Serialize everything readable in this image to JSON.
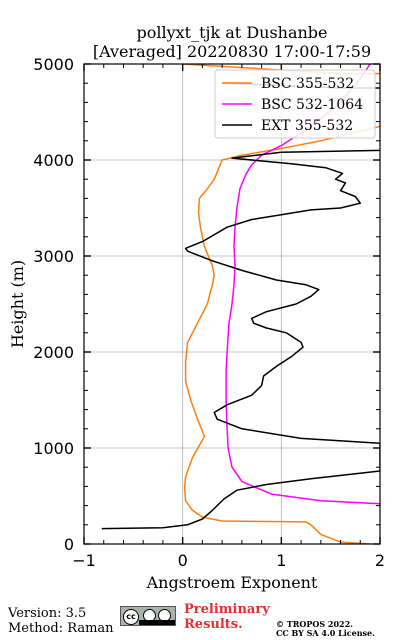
{
  "chart_data": {
    "type": "line",
    "title": [
      "pollyxt_tjk at Dushanbe",
      "[Averaged] 20220830 17:00-17:59"
    ],
    "xlabel": "Angstroem Exponent",
    "ylabel": "Height (m)",
    "xlim": [
      -1,
      2
    ],
    "ylim": [
      0,
      5000
    ],
    "xticks": [
      -1,
      0,
      1,
      2
    ],
    "xtick_labels": [
      "−1",
      "0",
      "1",
      "2"
    ],
    "yticks": [
      0,
      1000,
      2000,
      3000,
      4000,
      5000
    ],
    "ytick_labels": [
      "0",
      "1000",
      "2000",
      "3000",
      "4000",
      "5000"
    ],
    "grid": true,
    "legend_position": "top-right",
    "series": [
      {
        "name": "BSC 355-532",
        "color": "#ff7f0e",
        "points": [
          [
            1.9,
            0
          ],
          [
            1.6,
            20
          ],
          [
            1.4,
            100
          ],
          [
            1.3,
            200
          ],
          [
            1.25,
            230
          ],
          [
            0.4,
            240
          ],
          [
            0.2,
            280
          ],
          [
            0.1,
            350
          ],
          [
            0.03,
            450
          ],
          [
            0.02,
            600
          ],
          [
            0.03,
            700
          ],
          [
            0.1,
            900
          ],
          [
            0.22,
            1120
          ],
          [
            0.15,
            1300
          ],
          [
            0.08,
            1500
          ],
          [
            0.03,
            1700
          ],
          [
            0.03,
            1900
          ],
          [
            0.05,
            2100
          ],
          [
            0.15,
            2300
          ],
          [
            0.25,
            2500
          ],
          [
            0.3,
            2700
          ],
          [
            0.32,
            2800
          ],
          [
            0.3,
            2900
          ],
          [
            0.22,
            3100
          ],
          [
            0.18,
            3300
          ],
          [
            0.16,
            3450
          ],
          [
            0.17,
            3600
          ],
          [
            0.25,
            3700
          ],
          [
            0.32,
            3800
          ],
          [
            0.36,
            3900
          ],
          [
            0.4,
            4000
          ],
          [
            0.6,
            4050
          ],
          [
            1.0,
            4120
          ],
          [
            1.4,
            4200
          ],
          [
            1.8,
            4300
          ],
          [
            2.0,
            4350
          ]
        ],
        "end_values": [
          [
            2.0,
            4900
          ],
          [
            1.6,
            4900
          ],
          [
            0.0,
            5000
          ]
        ]
      },
      {
        "name": "BSC 532-1064",
        "color": "#ff00ff",
        "points": [
          [
            2.0,
            420
          ],
          [
            1.4,
            450
          ],
          [
            0.9,
            520
          ],
          [
            0.6,
            650
          ],
          [
            0.5,
            800
          ],
          [
            0.46,
            1000
          ],
          [
            0.45,
            1200
          ],
          [
            0.44,
            1500
          ],
          [
            0.44,
            1800
          ],
          [
            0.45,
            2000
          ],
          [
            0.47,
            2300
          ],
          [
            0.5,
            2500
          ],
          [
            0.52,
            2700
          ],
          [
            0.53,
            2900
          ],
          [
            0.52,
            3100
          ],
          [
            0.53,
            3300
          ],
          [
            0.55,
            3500
          ],
          [
            0.58,
            3700
          ],
          [
            0.64,
            3850
          ],
          [
            0.7,
            3950
          ],
          [
            0.8,
            4050
          ],
          [
            1.0,
            4150
          ],
          [
            1.3,
            4350
          ],
          [
            1.6,
            4600
          ],
          [
            1.8,
            4850
          ],
          [
            1.9,
            5000
          ]
        ]
      },
      {
        "name": "EXT 355-532",
        "color": "#000000",
        "points": [
          [
            -0.82,
            160
          ],
          [
            -0.2,
            170
          ],
          [
            0.05,
            200
          ],
          [
            0.2,
            260
          ],
          [
            0.3,
            350
          ],
          [
            0.42,
            470
          ],
          [
            0.55,
            560
          ],
          [
            0.85,
            620
          ],
          [
            1.3,
            680
          ],
          [
            2.0,
            760
          ],
          [
            2.0,
            1050
          ],
          [
            1.2,
            1100
          ],
          [
            0.6,
            1200
          ],
          [
            0.35,
            1300
          ],
          [
            0.32,
            1370
          ],
          [
            0.45,
            1450
          ],
          [
            0.7,
            1550
          ],
          [
            0.8,
            1650
          ],
          [
            0.82,
            1750
          ],
          [
            0.95,
            1850
          ],
          [
            1.1,
            1950
          ],
          [
            1.22,
            2050
          ],
          [
            1.2,
            2100
          ],
          [
            1.05,
            2200
          ],
          [
            0.85,
            2250
          ],
          [
            0.72,
            2300
          ],
          [
            0.7,
            2350
          ],
          [
            0.85,
            2420
          ],
          [
            1.15,
            2500
          ],
          [
            1.3,
            2580
          ],
          [
            1.38,
            2650
          ],
          [
            1.25,
            2700
          ],
          [
            0.95,
            2750
          ],
          [
            0.6,
            2850
          ],
          [
            0.3,
            2950
          ],
          [
            0.05,
            3050
          ],
          [
            0.03,
            3080
          ],
          [
            0.2,
            3150
          ],
          [
            0.45,
            3300
          ],
          [
            0.7,
            3380
          ],
          [
            1.0,
            3430
          ],
          [
            1.3,
            3480
          ],
          [
            1.6,
            3500
          ],
          [
            1.8,
            3550
          ],
          [
            1.75,
            3620
          ],
          [
            1.6,
            3680
          ],
          [
            1.65,
            3760
          ],
          [
            1.55,
            3800
          ],
          [
            1.62,
            3860
          ],
          [
            1.45,
            3920
          ],
          [
            1.1,
            3960
          ],
          [
            0.5,
            4020
          ],
          [
            1.0,
            4080
          ],
          [
            2.0,
            4100
          ]
        ],
        "end_values": [
          [
            0.4,
            4800
          ],
          [
            0.9,
            4780
          ],
          [
            1.6,
            4750
          ],
          [
            2.0,
            4750
          ]
        ]
      }
    ]
  },
  "footer": {
    "version": "Version: 3.5",
    "method": "Method: Raman",
    "preliminary_line1": "Preliminary",
    "preliminary_line2": "Results.",
    "copyright_line1": "© TROPOS 2022.",
    "copyright_line2": "CC BY SA 4.0 License.",
    "license_badge": "cc"
  }
}
